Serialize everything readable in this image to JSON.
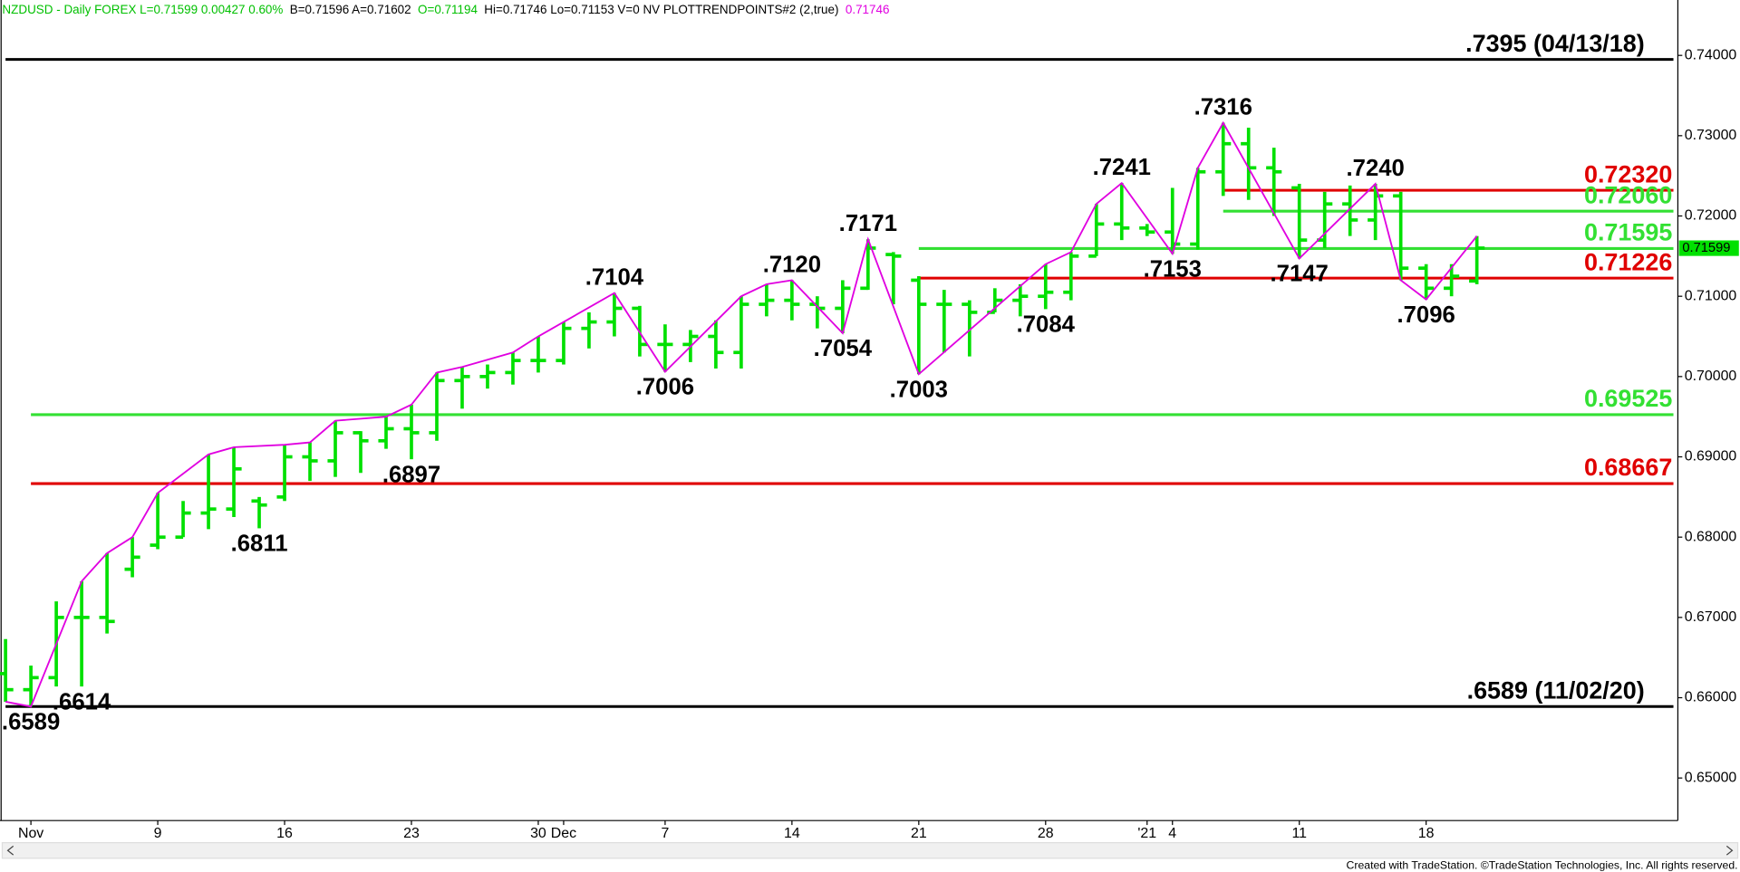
{
  "chart_data": {
    "type": "ohlc",
    "header": [
      {
        "text": "NZDUSD - Daily  FOREX  L=0.71599  0.00427  0.60%",
        "color": "#00c000"
      },
      {
        "text": "B=0.71596  A=0.71602",
        "color": "#000000"
      },
      {
        "text": "O=0.71194",
        "color": "#00c000"
      },
      {
        "text": "Hi=0.71746  Lo=0.71153  V=0  NV  PLOTTRENDPOINTS#2 (2,true)",
        "color": "#000000"
      },
      {
        "text": "0.71746",
        "color": "#e000e0"
      }
    ],
    "categories": [
      null,
      "Nov",
      null,
      null,
      null,
      null,
      "9",
      null,
      null,
      null,
      null,
      "16",
      null,
      null,
      null,
      null,
      "23",
      null,
      null,
      null,
      null,
      "30",
      "Dec",
      null,
      null,
      null,
      "7",
      null,
      null,
      null,
      null,
      "14",
      null,
      null,
      null,
      null,
      "21",
      null,
      null,
      null,
      null,
      "28",
      null,
      null,
      null,
      "'21",
      "4",
      null,
      null,
      null,
      null,
      "11",
      null,
      null,
      null,
      null,
      "18",
      null,
      null
    ],
    "open": [
      0.663,
      0.661,
      0.6625,
      0.67,
      0.67,
      0.676,
      0.679,
      0.68,
      0.683,
      0.6835,
      0.6845,
      0.685,
      0.69,
      0.6895,
      0.693,
      0.692,
      0.6935,
      0.693,
      0.6995,
      0.7,
      0.7005,
      0.702,
      0.702,
      0.706,
      0.7068,
      0.7085,
      0.704,
      0.704,
      0.705,
      0.703,
      0.709,
      0.7095,
      0.709,
      0.7085,
      0.711,
      0.7152,
      0.712,
      0.709,
      0.709,
      0.708,
      0.7095,
      0.71,
      0.7105,
      0.715,
      0.719,
      0.7185,
      0.718,
      0.7165,
      0.7255,
      0.729,
      0.726,
      0.7235,
      0.717,
      0.7215,
      0.7195,
      0.7225,
      0.7135,
      0.711,
      0.7119
    ],
    "high": [
      0.6673,
      0.664,
      0.672,
      0.6745,
      0.678,
      0.68,
      0.6855,
      0.6845,
      0.6903,
      0.6912,
      0.685,
      0.6915,
      0.6918,
      0.6945,
      0.6932,
      0.695,
      0.6965,
      0.7005,
      0.7012,
      0.7015,
      0.703,
      0.705,
      0.7068,
      0.708,
      0.7104,
      0.7088,
      0.7065,
      0.7058,
      0.707,
      0.71,
      0.7115,
      0.712,
      0.71,
      0.712,
      0.7171,
      0.7155,
      0.7125,
      0.7108,
      0.7095,
      0.711,
      0.7115,
      0.714,
      0.7155,
      0.7215,
      0.7241,
      0.719,
      0.7235,
      0.726,
      0.7316,
      0.731,
      0.7285,
      0.724,
      0.723,
      0.7238,
      0.724,
      0.723,
      0.714,
      0.714,
      0.7175
    ],
    "low": [
      0.6595,
      0.6589,
      0.6614,
      0.6614,
      0.668,
      0.675,
      0.6785,
      0.68,
      0.681,
      0.6825,
      0.6811,
      0.6845,
      0.687,
      0.6875,
      0.688,
      0.691,
      0.6897,
      0.692,
      0.696,
      0.6985,
      0.699,
      0.7005,
      0.7015,
      0.7035,
      0.705,
      0.7025,
      0.7006,
      0.7018,
      0.701,
      0.701,
      0.7075,
      0.707,
      0.706,
      0.7054,
      0.7108,
      0.709,
      0.7003,
      0.703,
      0.7025,
      0.708,
      0.7075,
      0.7084,
      0.7095,
      0.715,
      0.717,
      0.7175,
      0.7153,
      0.7158,
      0.7225,
      0.722,
      0.72,
      0.7147,
      0.716,
      0.7175,
      0.717,
      0.712,
      0.7096,
      0.71,
      0.7115
    ],
    "close": [
      0.661,
      0.6625,
      0.67,
      0.67,
      0.6695,
      0.6775,
      0.68,
      0.683,
      0.6835,
      0.6885,
      0.684,
      0.69,
      0.6895,
      0.693,
      0.692,
      0.6935,
      0.693,
      0.6995,
      0.7,
      0.7005,
      0.702,
      0.702,
      0.706,
      0.7068,
      0.7085,
      0.704,
      0.704,
      0.705,
      0.703,
      0.709,
      0.7095,
      0.709,
      0.7085,
      0.711,
      0.716,
      0.715,
      0.709,
      0.709,
      0.708,
      0.7095,
      0.71,
      0.7105,
      0.715,
      0.719,
      0.7185,
      0.718,
      0.7165,
      0.7255,
      0.729,
      0.726,
      0.7255,
      0.717,
      0.7215,
      0.7195,
      0.7225,
      0.7135,
      0.711,
      0.7125,
      0.716
    ],
    "color": "#00e000",
    "zigzag": {
      "color": "#e000e0",
      "x": [
        0,
        1,
        3,
        4,
        5,
        6,
        8,
        9,
        11,
        12,
        13,
        15,
        16,
        17,
        18,
        20,
        21,
        22,
        24,
        26,
        29,
        30,
        31,
        33,
        34,
        36,
        41,
        42,
        43,
        44,
        46,
        47,
        48,
        51,
        54,
        55,
        56,
        58
      ],
      "values": [
        0.6595,
        0.6589,
        0.6745,
        0.678,
        0.68,
        0.6855,
        0.6903,
        0.6912,
        0.6915,
        0.6918,
        0.6945,
        0.695,
        0.6965,
        0.7005,
        0.7012,
        0.703,
        0.705,
        0.7068,
        0.7104,
        0.7006,
        0.71,
        0.7115,
        0.712,
        0.7054,
        0.7171,
        0.7003,
        0.714,
        0.7155,
        0.7215,
        0.7241,
        0.7153,
        0.726,
        0.7316,
        0.7147,
        0.724,
        0.712,
        0.7096,
        0.7175
      ]
    },
    "swings": {
      "x": [
        1,
        3,
        10,
        16,
        24,
        26,
        31,
        33,
        34,
        36,
        41,
        44,
        46,
        48,
        51,
        54,
        56
      ],
      "values": [
        0.6589,
        0.6614,
        0.6811,
        0.6897,
        0.7104,
        0.7006,
        0.712,
        0.7054,
        0.7171,
        0.7003,
        0.7084,
        0.7241,
        0.7153,
        0.7316,
        0.7147,
        0.724,
        0.7096
      ],
      "value_labels": [
        ".6589",
        ".6614",
        ".6811",
        ".6897",
        ".7104",
        ".7006",
        ".7120",
        ".7054",
        ".7171",
        ".7003",
        ".7084",
        ".7241",
        ".7153",
        ".7316",
        ".7147",
        ".7240",
        ".7096"
      ]
    },
    "levels": [
      {
        "value": 0.7395,
        "label": ".7395 (04/13/18)",
        "color": "#000000",
        "start": 0
      },
      {
        "value": 0.7232,
        "label": "0.72320",
        "color": "#e00000",
        "start": 48
      },
      {
        "value": 0.7206,
        "label": "0.72060",
        "color": "#33e033",
        "start": 48
      },
      {
        "value": 0.71595,
        "label": "0.71595",
        "color": "#33e033",
        "start": 36
      },
      {
        "value": 0.71226,
        "label": "0.71226",
        "color": "#e00000",
        "start": 36
      },
      {
        "value": 0.69525,
        "label": "0.69525",
        "color": "#33e033",
        "start": 1
      },
      {
        "value": 0.68667,
        "label": "0.68667",
        "color": "#e00000",
        "start": 1
      },
      {
        "value": 0.6589,
        "label": ".6589 (11/02/20)",
        "color": "#000000",
        "start": 0
      }
    ],
    "last_price": {
      "value": 0.71599,
      "label": "0.71599"
    },
    "ylim": [
      0.6447,
      0.7469
    ],
    "yticks": [
      {
        "value": 0.65,
        "label": "0.65000"
      },
      {
        "value": 0.66,
        "label": "0.66000"
      },
      {
        "value": 0.67,
        "label": "0.67000"
      },
      {
        "value": 0.68,
        "label": "0.68000"
      },
      {
        "value": 0.69,
        "label": "0.69000"
      },
      {
        "value": 0.7,
        "label": "0.70000"
      },
      {
        "value": 0.71,
        "label": "0.71000"
      },
      {
        "value": 0.72,
        "label": "0.72000"
      },
      {
        "value": 0.73,
        "label": "0.73000"
      },
      {
        "value": 0.74,
        "label": "0.74000"
      }
    ],
    "footer": "Created with TradeStation. ©TradeStation Technologies, Inc. All rights reserved."
  }
}
